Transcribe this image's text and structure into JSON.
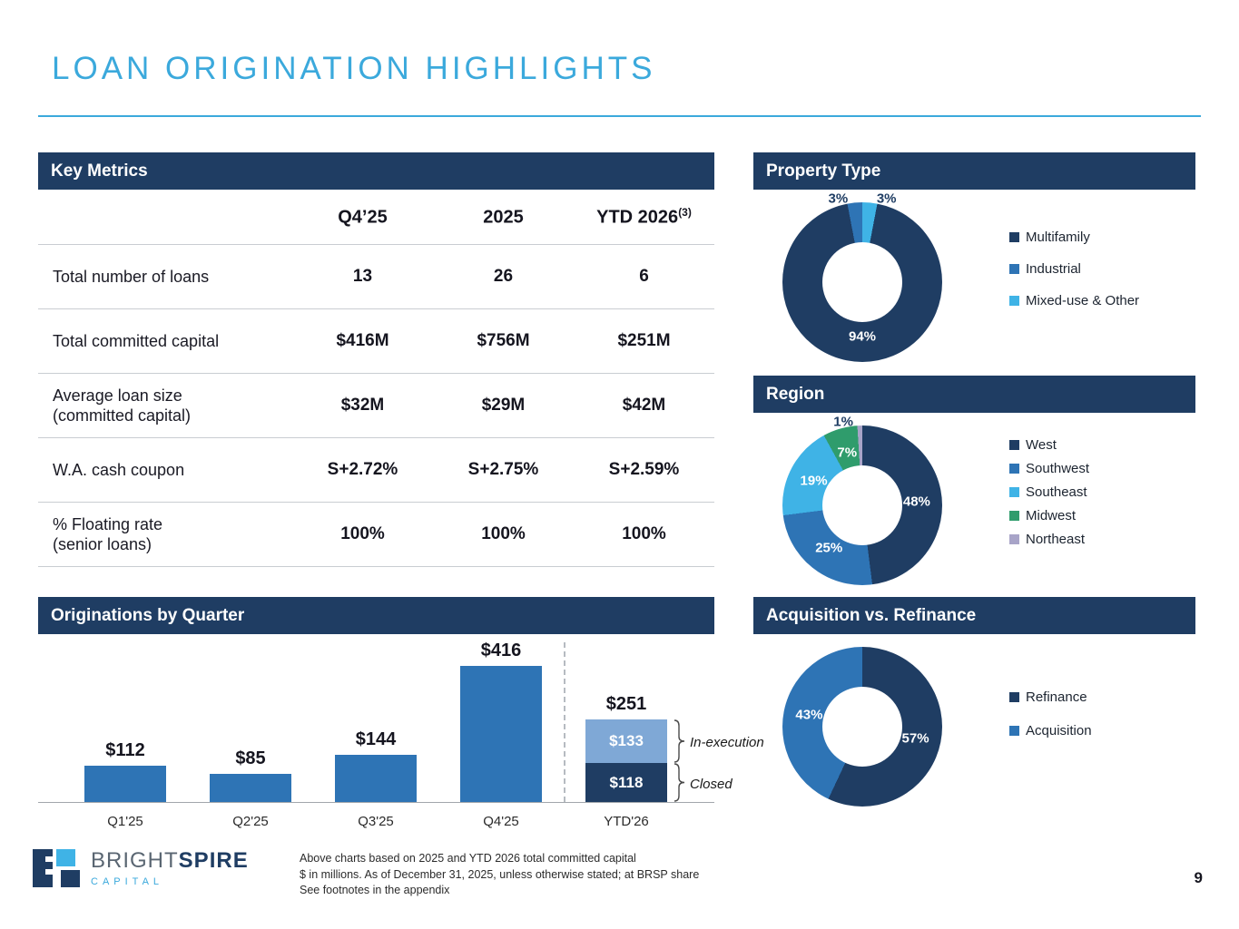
{
  "slide": {
    "title": "LOAN ORIGINATION HIGHLIGHTS"
  },
  "palette": {
    "navy": "#1F3D63",
    "blue": "#2E74B5",
    "light_blue": "#3FB3E6",
    "steel_blue": "#7FA8D6",
    "green": "#2F9C6C",
    "lavender": "#A8A4C8",
    "title_blue": "#3BA9DC"
  },
  "key_metrics": {
    "header": "Key Metrics",
    "columns": [
      {
        "label": "Q4’25",
        "superscript": ""
      },
      {
        "label": "2025",
        "superscript": ""
      },
      {
        "label": "YTD 2026",
        "superscript": "(3)"
      }
    ],
    "rows": [
      {
        "label": "Total number of loans",
        "label2": "",
        "values": [
          "13",
          "26",
          "6"
        ]
      },
      {
        "label": "Total committed capital",
        "label2": "",
        "values": [
          "$416M",
          "$756M",
          "$251M"
        ]
      },
      {
        "label": "Average loan size",
        "label2": "(committed capital)",
        "values": [
          "$32M",
          "$29M",
          "$42M"
        ]
      },
      {
        "label": "W.A. cash coupon",
        "label2": "",
        "values": [
          "S+2.72%",
          "S+2.75%",
          "S+2.59%"
        ]
      },
      {
        "label": "% Floating rate",
        "label2": "(senior loans)",
        "values": [
          "100%",
          "100%",
          "100%"
        ]
      }
    ]
  },
  "chart_data": [
    {
      "id": "property_type",
      "type": "donut",
      "title": "Property Type",
      "rotate_deg": 10.8,
      "legend_position": "right",
      "slices": [
        {
          "label": "Multifamily",
          "value": 94,
          "color": "navy"
        },
        {
          "label": "Industrial",
          "value": 3,
          "color": "blue"
        },
        {
          "label": "Mixed-use & Other",
          "value": 3,
          "color": "light_blue"
        }
      ]
    },
    {
      "id": "region",
      "type": "donut",
      "title": "Region",
      "rotate_deg": 0,
      "legend_position": "right",
      "slices": [
        {
          "label": "West",
          "value": 48,
          "color": "navy"
        },
        {
          "label": "Southwest",
          "value": 25,
          "color": "blue"
        },
        {
          "label": "Southeast",
          "value": 19,
          "color": "light_blue"
        },
        {
          "label": "Midwest",
          "value": 7,
          "color": "green"
        },
        {
          "label": "Northeast",
          "value": 1,
          "color": "lavender"
        }
      ]
    },
    {
      "id": "acq_refi",
      "type": "donut",
      "title": "Acquisition vs. Refinance",
      "rotate_deg": 0,
      "legend_position": "right",
      "slices": [
        {
          "label": "Refinance",
          "value": 57,
          "color": "navy"
        },
        {
          "label": "Acquisition",
          "value": 43,
          "color": "blue"
        }
      ]
    },
    {
      "id": "originations",
      "type": "bar",
      "title": "Originations by Quarter",
      "unit": "$ in millions",
      "separator_after": "Q4'25",
      "bars": [
        {
          "category": "Q1'25",
          "total_label": "$112",
          "segments": [
            {
              "name": "Closed",
              "value": 112,
              "color": "blue"
            }
          ]
        },
        {
          "category": "Q2'25",
          "total_label": "$85",
          "segments": [
            {
              "name": "Closed",
              "value": 85,
              "color": "blue"
            }
          ]
        },
        {
          "category": "Q3'25",
          "total_label": "$144",
          "segments": [
            {
              "name": "Closed",
              "value": 144,
              "color": "blue"
            }
          ]
        },
        {
          "category": "Q4'25",
          "total_label": "$416",
          "segments": [
            {
              "name": "Closed",
              "value": 416,
              "color": "blue"
            }
          ]
        },
        {
          "category": "YTD'26",
          "total_label": "$251",
          "segments": [
            {
              "name": "Closed",
              "value": 118,
              "color": "navy",
              "label": "$118",
              "annotation": "Closed"
            },
            {
              "name": "In-execution",
              "value": 133,
              "color": "steel_blue",
              "label": "$133",
              "annotation": "In-execution"
            }
          ]
        }
      ]
    }
  ],
  "footer": {
    "brand": {
      "part1": "BRIGHT",
      "part2": "SPIRE",
      "sub": "CAPITAL"
    },
    "notes": [
      "Above charts based on 2025 and YTD 2026 total committed capital",
      "$ in millions. As of December 31, 2025, unless otherwise stated; at BRSP share",
      "See footnotes in the appendix"
    ],
    "page_number": "9"
  }
}
